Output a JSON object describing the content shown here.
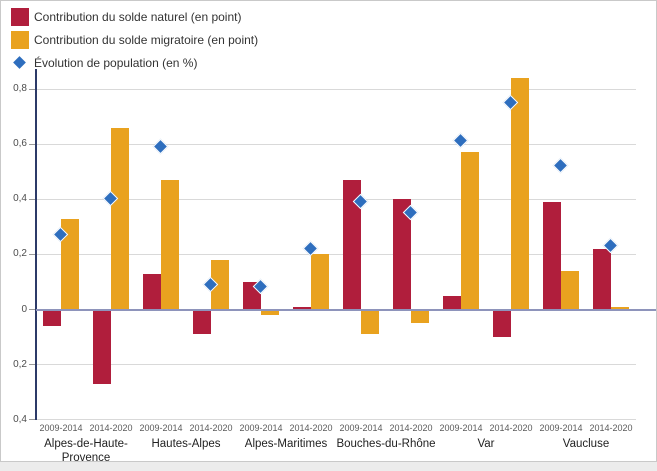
{
  "legend": {
    "items": [
      {
        "label": "Contribution du solde naturel (en point)",
        "marker": "square",
        "color": "#b01e3c"
      },
      {
        "label": "Contribution du solde migratoire (en point)",
        "marker": "square",
        "color": "#e9a21f"
      },
      {
        "label": "Évolution de population (en %)",
        "marker": "diamond",
        "color": "#2e6ebe"
      }
    ]
  },
  "chart_data": {
    "type": "bar",
    "title": "",
    "xlabel": "",
    "ylabel": "",
    "ylim": [
      -0.4,
      0.8
    ],
    "grid": true,
    "legend_position": "top-left",
    "y_ticks": [
      0.8,
      0.6,
      0.4,
      0.2,
      0,
      -0.2,
      -0.4
    ],
    "y_tick_labels": [
      "0,8",
      "0,6",
      "0,4",
      "0,2",
      "0",
      "0,2",
      "0,4"
    ],
    "period_labels": [
      "2009-2014",
      "2014-2020",
      "2009-2014",
      "2014-2020",
      "2009-2014",
      "2014-2020",
      "2009-2014",
      "2014-2020",
      "2009-2014",
      "2014-2020",
      "2009-2014",
      "2014-2020"
    ],
    "department_groups": [
      "Alpes-de-Haute-Provence",
      "Hautes-Alpes",
      "Alpes-Maritimes",
      "Bouches-du-Rhône",
      "Var",
      "Vaucluse"
    ],
    "series": [
      {
        "name": "Contribution du solde naturel (en point)",
        "type": "bar",
        "color": "#b01e3c",
        "values": [
          -0.06,
          -0.27,
          0.13,
          -0.09,
          0.1,
          0.01,
          0.47,
          0.4,
          0.05,
          -0.1,
          0.39,
          0.22
        ]
      },
      {
        "name": "Contribution du solde migratoire (en point)",
        "type": "bar",
        "color": "#e9a21f",
        "values": [
          0.33,
          0.66,
          0.47,
          0.18,
          -0.02,
          0.2,
          -0.09,
          -0.05,
          0.57,
          0.84,
          0.14,
          0.01
        ]
      },
      {
        "name": "Évolution de population (en %)",
        "type": "scatter",
        "marker": "diamond",
        "color": "#2e6ebe",
        "values": [
          0.27,
          0.4,
          0.59,
          0.09,
          0.08,
          0.22,
          0.39,
          0.35,
          0.61,
          0.75,
          0.52,
          0.23
        ]
      }
    ],
    "colors": {
      "naturel_bar": "#b01e3c",
      "migratoire_bar": "#e9a21f",
      "evolution_marker": "#2e6ebe",
      "axis_line": "#2c3a68",
      "zero_line": "#8e94bb",
      "gridline": "#d9d9d9",
      "tick": "#9a9a9a"
    }
  }
}
